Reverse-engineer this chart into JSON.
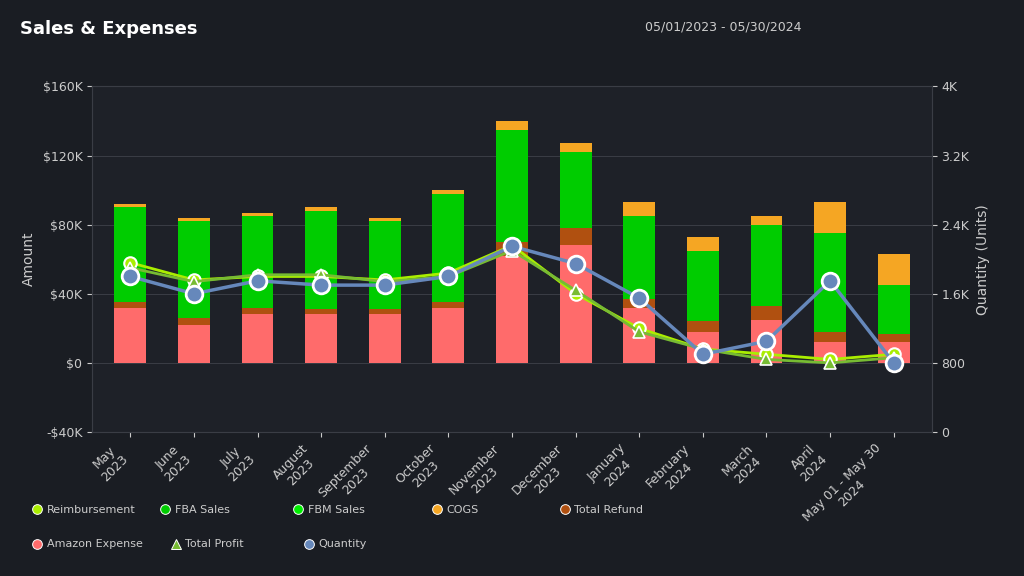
{
  "title": "Sales & Expenses",
  "date_range": "05/01/2023 - 05/30/2024",
  "background_color": "#1a1d23",
  "plot_bg_color": "#1e2128",
  "grid_color": "#3a3d45",
  "text_color": "#cccccc",
  "categories": [
    "May\n2023",
    "June\n2023",
    "July\n2023",
    "August\n2023",
    "September\n2023",
    "October\n2023",
    "November\n2023",
    "December\n2023",
    "January\n2024",
    "February\n2024",
    "March\n2024",
    "April\n2024",
    "May 01 - May 30\n2024"
  ],
  "fba_sales": [
    90000,
    82000,
    85000,
    88000,
    82000,
    98000,
    135000,
    122000,
    85000,
    65000,
    80000,
    75000,
    45000
  ],
  "amazon_expense": [
    32000,
    22000,
    28000,
    28000,
    28000,
    32000,
    62000,
    68000,
    32000,
    18000,
    25000,
    12000,
    12000
  ],
  "cogs": [
    2000,
    2000,
    2000,
    2000,
    2000,
    2000,
    5000,
    5000,
    8000,
    8000,
    5000,
    18000,
    18000
  ],
  "total_refund": [
    3000,
    4000,
    3500,
    3000,
    3000,
    3000,
    8000,
    10000,
    5000,
    6000,
    8000,
    6000,
    5000
  ],
  "reimbursement_line": [
    58000,
    48000,
    50000,
    50000,
    48000,
    52000,
    68000,
    40000,
    20000,
    8000,
    5000,
    2000,
    5000
  ],
  "total_profit_line": [
    55000,
    47000,
    51000,
    51000,
    47000,
    50000,
    65000,
    42000,
    18000,
    8000,
    2000,
    0,
    3000
  ],
  "quantity_line": [
    1800,
    1600,
    1750,
    1700,
    1700,
    1800,
    2150,
    1950,
    1550,
    900,
    1050,
    1750,
    800
  ],
  "ylim_left": [
    -40000,
    160000
  ],
  "ylim_right": [
    0,
    4000
  ],
  "yticks_left": [
    -40000,
    0,
    40000,
    80000,
    120000,
    160000
  ],
  "ytick_labels_left": [
    "-$40K",
    "$0",
    "$40K",
    "$80K",
    "$120K",
    "$160K"
  ],
  "yticks_right": [
    0,
    800,
    1600,
    2400,
    3200,
    4000
  ],
  "ytick_labels_right": [
    "0",
    "800",
    "1.6K",
    "2.4K",
    "3.2K",
    "4K"
  ],
  "colors": {
    "fba_sales": "#00cc00",
    "amazon_expense": "#ff6b6b",
    "cogs": "#f5a623",
    "total_refund": "#b05010",
    "reimbursement": "#aaee00",
    "total_profit": "#77bb33",
    "quantity": "#6688bb"
  },
  "legend_items_row1": [
    {
      "label": "Reimbursement",
      "color": "#aaee00",
      "marker": "o"
    },
    {
      "label": "FBA Sales",
      "color": "#00cc00",
      "marker": "o"
    },
    {
      "label": "FBM Sales",
      "color": "#00ee00",
      "marker": "o"
    },
    {
      "label": "COGS",
      "color": "#f5a623",
      "marker": "o"
    },
    {
      "label": "Total Refund",
      "color": "#b05010",
      "marker": "o"
    }
  ],
  "legend_items_row2": [
    {
      "label": "Amazon Expense",
      "color": "#ff6b6b",
      "marker": "o"
    },
    {
      "label": "Total Profit",
      "color": "#77bb33",
      "marker": "^"
    },
    {
      "label": "Quantity",
      "color": "#6688bb",
      "marker": "o"
    }
  ]
}
